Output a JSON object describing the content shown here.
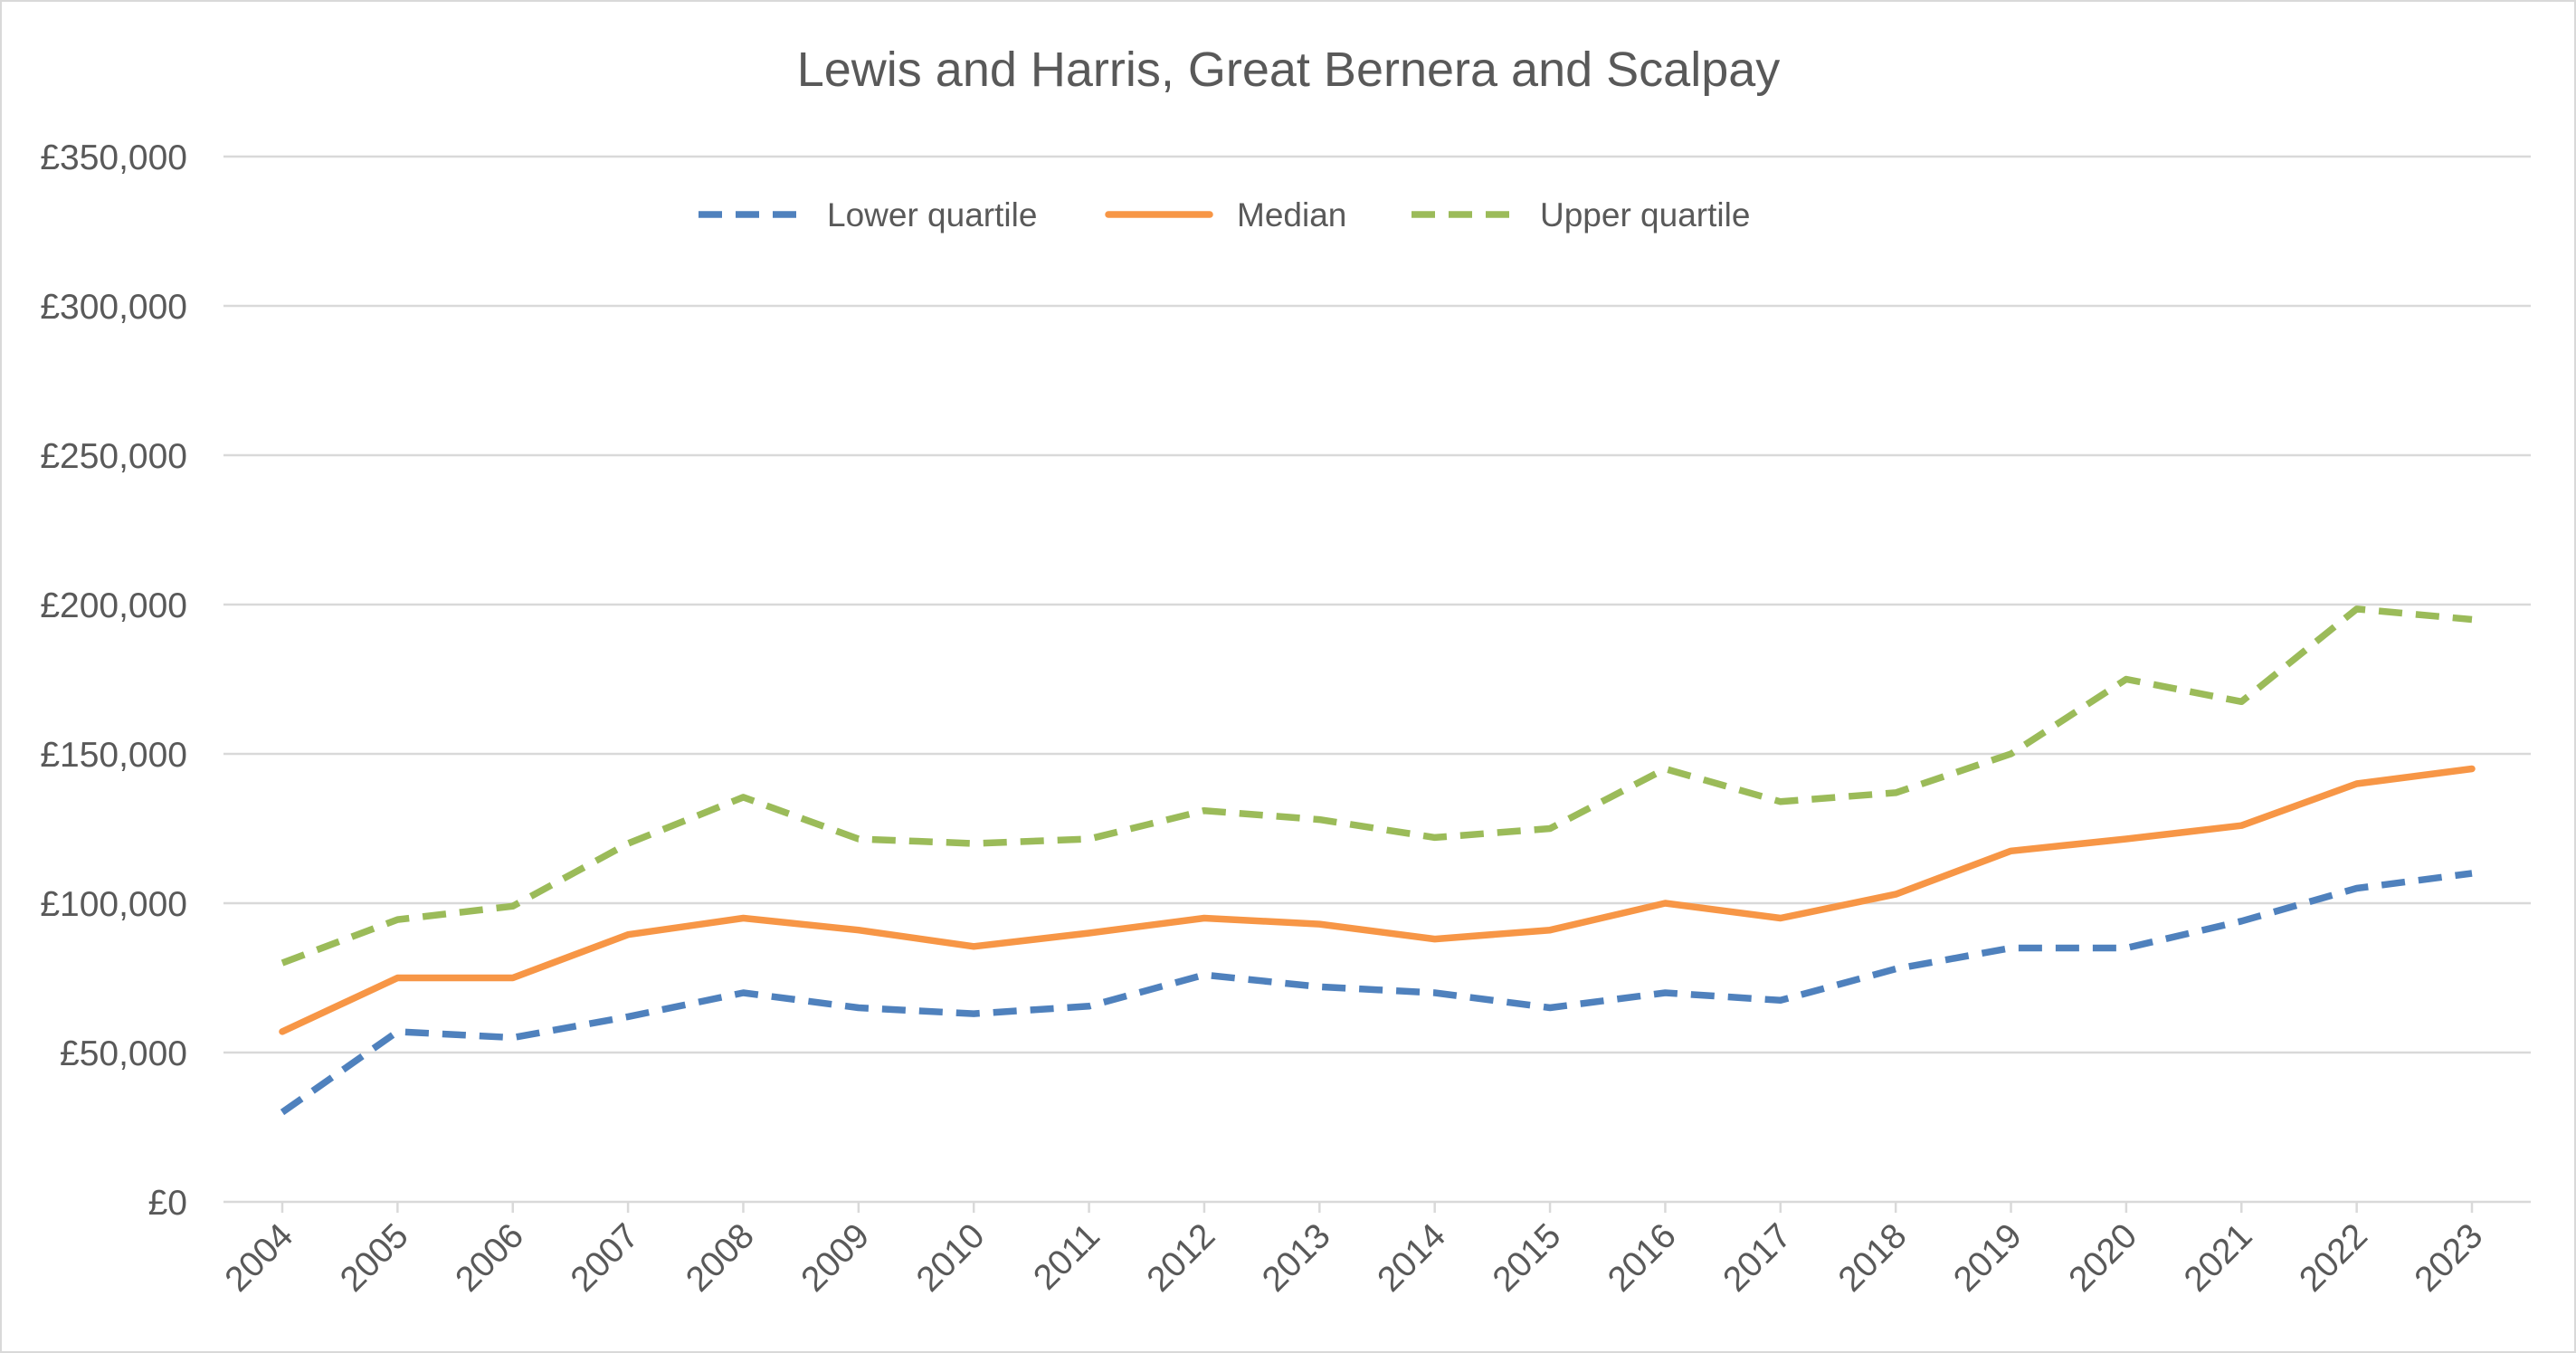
{
  "chart_data": {
    "type": "line",
    "title": "Lewis and Harris, Great Bernera and Scalpay",
    "xlabel": "",
    "ylabel": "",
    "categories": [
      "2004",
      "2005",
      "2006",
      "2007",
      "2008",
      "2009",
      "2010",
      "2011",
      "2012",
      "2013",
      "2014",
      "2015",
      "2016",
      "2017",
      "2018",
      "2019",
      "2020",
      "2021",
      "2022",
      "2023"
    ],
    "ylim": [
      0,
      350000
    ],
    "yticks": [
      0,
      50000,
      100000,
      150000,
      200000,
      250000,
      300000,
      350000
    ],
    "ytick_labels": [
      "£0",
      "£50,000",
      "£100,000",
      "£150,000",
      "£200,000",
      "£250,000",
      "£300,000",
      "£350,000"
    ],
    "grid": true,
    "legend_position": "top",
    "series": [
      {
        "name": "Lower quartile",
        "color": "#4f81bd",
        "style": "dashed",
        "values": [
          30000,
          57000,
          55000,
          62000,
          70000,
          65000,
          63000,
          65500,
          76000,
          72000,
          70000,
          65000,
          70000,
          67500,
          78000,
          85000,
          85000,
          94000,
          105000,
          110000
        ]
      },
      {
        "name": "Median",
        "color": "#f79646",
        "style": "solid",
        "values": [
          57000,
          75000,
          75000,
          89500,
          95000,
          91000,
          85500,
          90000,
          95000,
          93000,
          88000,
          91000,
          100000,
          95000,
          103000,
          117500,
          121500,
          126000,
          140000,
          145000
        ]
      },
      {
        "name": "Upper quartile",
        "color": "#9bbb59",
        "style": "dashed",
        "values": [
          80000,
          94500,
          99000,
          120000,
          135500,
          121500,
          120000,
          121500,
          131000,
          128000,
          122000,
          125000,
          145000,
          134000,
          137000,
          150000,
          175000,
          167500,
          198500,
          195000
        ]
      }
    ]
  }
}
